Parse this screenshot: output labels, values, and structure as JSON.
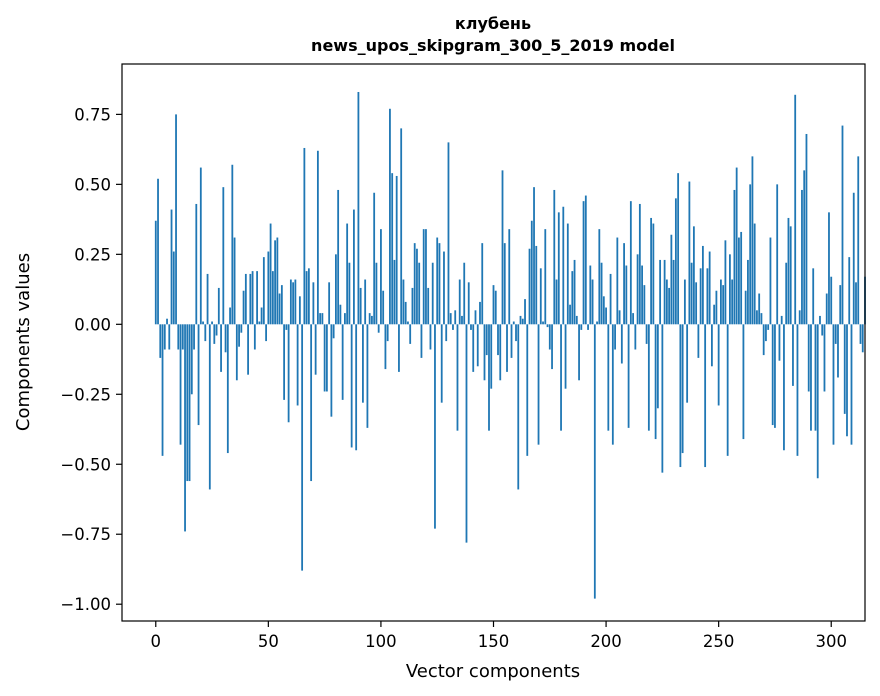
{
  "chart_data": {
    "type": "bar",
    "title": "клубень",
    "subtitle": "news_upos_skipgram_300_5_2019 model",
    "xlabel": "Vector components",
    "ylabel": "Components values",
    "xlim": [
      -15,
      315
    ],
    "ylim": [
      -1.06,
      0.93
    ],
    "xticks": [
      0,
      50,
      100,
      150,
      200,
      250,
      300
    ],
    "yticks": [
      -1.0,
      -0.75,
      -0.5,
      -0.25,
      0.0,
      0.25,
      0.5,
      0.75
    ],
    "ytick_labels": [
      "−1.00",
      "−0.75",
      "−0.50",
      "−0.25",
      "0.00",
      "0.25",
      "0.50",
      "0.75"
    ],
    "bar_color": "#1f77b4",
    "grid": false,
    "values": [
      0.37,
      0.52,
      -0.12,
      -0.47,
      -0.09,
      0.02,
      -0.09,
      0.41,
      0.26,
      0.75,
      -0.09,
      -0.43,
      -0.09,
      -0.74,
      -0.56,
      -0.56,
      -0.25,
      -0.09,
      0.43,
      -0.36,
      0.56,
      0.01,
      -0.06,
      0.18,
      -0.59,
      0.01,
      -0.07,
      -0.04,
      0.13,
      -0.17,
      0.49,
      -0.1,
      -0.46,
      0.06,
      0.57,
      0.31,
      -0.2,
      -0.08,
      -0.03,
      0.12,
      0.18,
      -0.18,
      0.18,
      0.19,
      -0.09,
      0.19,
      0.01,
      0.06,
      0.24,
      -0.06,
      0.26,
      0.36,
      0.19,
      0.3,
      0.31,
      0.11,
      0.14,
      -0.27,
      -0.02,
      -0.35,
      0.16,
      0.15,
      0.16,
      -0.29,
      0.1,
      -0.88,
      0.63,
      0.19,
      0.2,
      -0.56,
      0.15,
      -0.18,
      0.62,
      0.04,
      0.04,
      -0.24,
      -0.24,
      0.15,
      -0.33,
      -0.05,
      0.25,
      0.48,
      0.07,
      -0.27,
      0.04,
      0.36,
      0.22,
      -0.44,
      0.41,
      -0.45,
      0.83,
      0.13,
      -0.28,
      0.16,
      -0.37,
      0.04,
      0.03,
      0.47,
      0.22,
      -0.03,
      0.34,
      0.12,
      -0.16,
      -0.06,
      0.77,
      0.54,
      0.23,
      0.53,
      -0.17,
      0.7,
      0.16,
      0.08,
      0.01,
      -0.07,
      0.13,
      0.29,
      0.27,
      0.22,
      -0.12,
      0.34,
      0.34,
      0.13,
      -0.09,
      0.22,
      -0.73,
      0.31,
      0.29,
      -0.28,
      0.26,
      -0.06,
      0.65,
      0.04,
      -0.02,
      0.05,
      -0.38,
      0.16,
      0.03,
      0.22,
      -0.78,
      0.15,
      -0.02,
      -0.17,
      0.05,
      -0.15,
      0.08,
      0.29,
      -0.2,
      -0.11,
      -0.38,
      -0.23,
      0.14,
      0.12,
      -0.11,
      -0.2,
      0.55,
      0.29,
      -0.17,
      0.34,
      -0.12,
      0.01,
      -0.06,
      -0.59,
      0.03,
      0.02,
      0.09,
      -0.47,
      0.27,
      0.37,
      0.49,
      0.28,
      -0.43,
      0.2,
      0.01,
      0.34,
      -0.01,
      -0.09,
      -0.16,
      0.48,
      0.16,
      0.4,
      -0.38,
      0.42,
      -0.23,
      0.36,
      0.07,
      0.19,
      0.23,
      0.03,
      -0.2,
      -0.02,
      0.44,
      0.46,
      -0.02,
      0.21,
      0.16,
      -0.98,
      0.01,
      0.34,
      0.22,
      0.1,
      0.06,
      -0.38,
      0.18,
      -0.43,
      -0.09,
      0.31,
      0.05,
      -0.14,
      0.29,
      0.21,
      -0.37,
      0.44,
      0.04,
      -0.09,
      0.25,
      0.43,
      0.21,
      0.14,
      -0.07,
      -0.38,
      0.38,
      0.36,
      -0.41,
      -0.3,
      0.23,
      -0.53,
      0.23,
      0.16,
      0.13,
      0.32,
      0.23,
      0.45,
      0.54,
      -0.51,
      -0.46,
      0.16,
      -0.28,
      0.51,
      0.22,
      0.35,
      0.15,
      -0.12,
      0.2,
      0.28,
      -0.51,
      0.2,
      0.26,
      -0.15,
      0.07,
      0.12,
      -0.29,
      0.16,
      0.14,
      0.3,
      -0.47,
      0.25,
      0.16,
      0.48,
      0.56,
      0.31,
      0.33,
      -0.41,
      0.12,
      0.23,
      0.5,
      0.6,
      0.36,
      0.05,
      0.11,
      0.04,
      -0.11,
      -0.06,
      -0.02,
      0.31,
      -0.36,
      -0.37,
      0.5,
      -0.13,
      0.03,
      -0.45,
      0.22,
      0.38,
      0.35,
      -0.22,
      0.82,
      -0.47,
      0.05,
      0.48,
      0.55,
      0.68,
      -0.24,
      -0.38,
      0.2,
      -0.38,
      -0.55,
      0.03,
      -0.04,
      -0.24,
      0.11,
      0.4,
      0.17,
      -0.43,
      -0.07,
      -0.19,
      0.14,
      0.71,
      -0.32,
      -0.4,
      0.24,
      -0.43,
      0.47,
      0.15,
      0.6,
      -0.07,
      -0.1,
      0.17
    ]
  }
}
